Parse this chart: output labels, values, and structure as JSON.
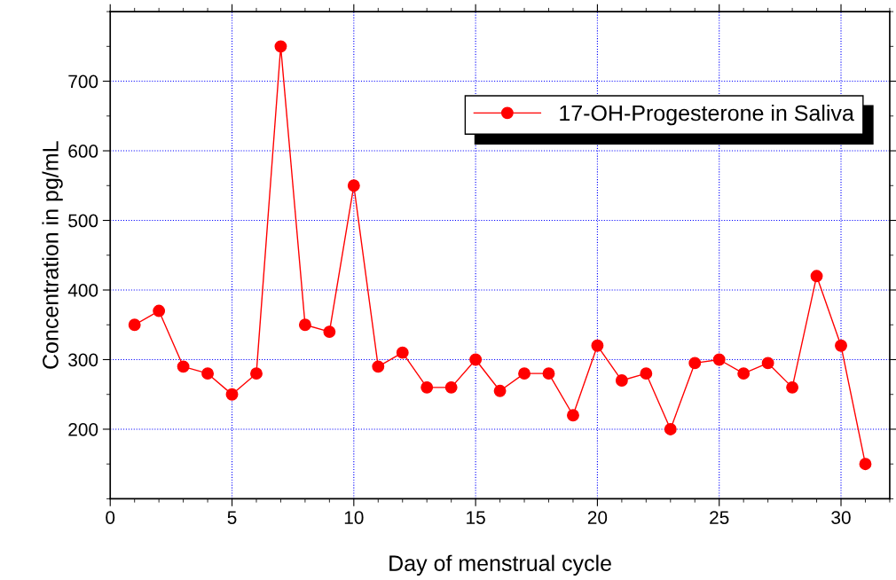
{
  "chart_data": {
    "type": "line",
    "xlabel": "Day of menstrual cycle",
    "ylabel": "Concentration in pg/mL",
    "x": [
      1,
      2,
      3,
      4,
      5,
      6,
      7,
      8,
      9,
      10,
      11,
      12,
      13,
      14,
      15,
      16,
      17,
      18,
      19,
      20,
      21,
      22,
      23,
      24,
      25,
      26,
      27,
      28,
      29,
      30,
      31
    ],
    "series": [
      {
        "name": "17-OH-Progesterone in Saliva",
        "color": "#ff0000",
        "values": [
          350,
          370,
          290,
          280,
          250,
          280,
          750,
          350,
          340,
          550,
          290,
          310,
          260,
          260,
          300,
          255,
          280,
          280,
          220,
          320,
          270,
          280,
          200,
          295,
          300,
          280,
          295,
          260,
          420,
          320,
          150
        ]
      }
    ],
    "xlim": [
      0,
      32
    ],
    "xticks": [
      0,
      5,
      10,
      15,
      20,
      25,
      30
    ],
    "ylim": [
      100,
      800
    ],
    "yticks": [
      200,
      300,
      400,
      500,
      600,
      700
    ],
    "grid": true,
    "legend": "top right",
    "marker": "circle",
    "line_style": "solid"
  }
}
